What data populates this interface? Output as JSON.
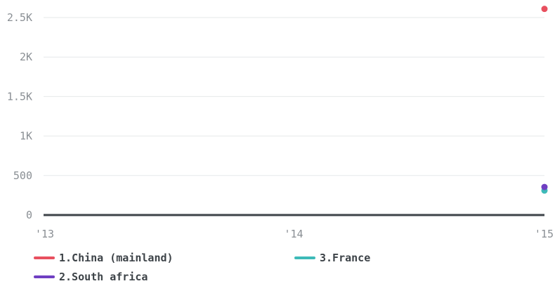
{
  "chart_data": {
    "type": "scatter",
    "x_ticks": [
      "'13",
      "'14",
      "'15"
    ],
    "y_ticks": [
      "0",
      "500",
      "1K",
      "1.5K",
      "2K",
      "2.5K"
    ],
    "ylim": [
      0,
      2500
    ],
    "grid": true,
    "legend_position": "bottom",
    "series": [
      {
        "name": "1.China (mainland)",
        "color": "#e8505f",
        "points": [
          {
            "x": "'15",
            "y": 2610
          }
        ]
      },
      {
        "name": "3.France",
        "color": "#3dbab8",
        "points": [
          {
            "x": "'15",
            "y": 310
          }
        ]
      },
      {
        "name": "2.South africa",
        "color": "#6f3fc2",
        "points": [
          {
            "x": "'15",
            "y": 355
          }
        ]
      }
    ]
  }
}
